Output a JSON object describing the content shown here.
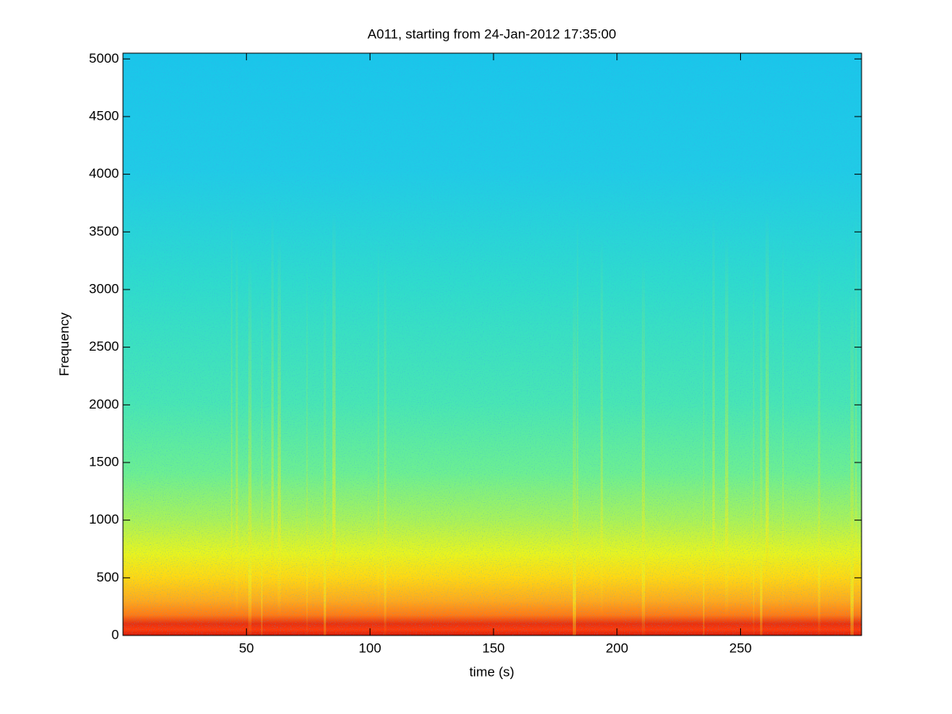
{
  "chart_data": {
    "type": "spectrogram",
    "title": "A011, starting from 24-Jan-2012 17:35:00",
    "x_label": "time (s)",
    "y_label": "Frequency",
    "xlim": [
      0,
      299
    ],
    "ylim": [
      0,
      5050
    ],
    "xticks": [
      50,
      100,
      150,
      200,
      250
    ],
    "yticks": [
      0,
      500,
      1000,
      1500,
      2000,
      2500,
      3000,
      3500,
      4000,
      4500,
      5000
    ]
  }
}
